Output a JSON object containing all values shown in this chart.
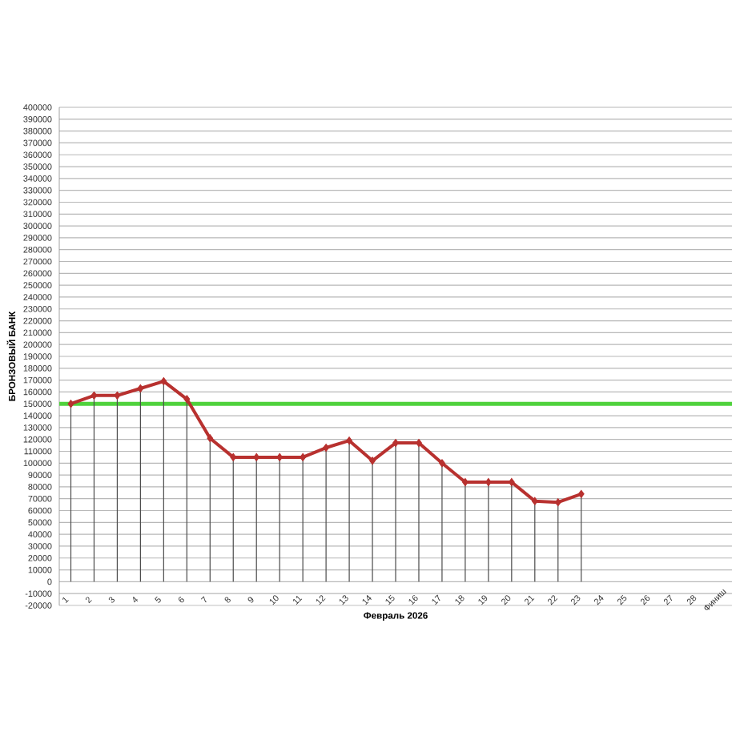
{
  "chart_data": {
    "type": "line",
    "xlabel": "Февраль 2026",
    "ylabel": "БРОНЗОВЫЙ БАНК",
    "categories": [
      "1",
      "2",
      "3",
      "4",
      "5",
      "6",
      "7",
      "8",
      "9",
      "10",
      "11",
      "12",
      "13",
      "14",
      "15",
      "16",
      "17",
      "18",
      "19",
      "20",
      "21",
      "22",
      "23",
      "24",
      "25",
      "26",
      "27",
      "28",
      "Финиш"
    ],
    "series": [
      {
        "color": "#b8312f",
        "marker": "none",
        "values": [
          150000,
          157000,
          157000,
          163000,
          169000,
          154000,
          121000,
          105000,
          105000,
          105000,
          105000,
          113000,
          119000,
          102000,
          117000,
          117000,
          100000,
          84000,
          84000,
          84000,
          68000,
          67000,
          74000,
          null,
          null,
          null,
          null,
          null,
          null
        ]
      },
      {
        "type": "lollipop",
        "color": "#b8312f",
        "values": [
          150000,
          157000,
          157000,
          163000,
          169000,
          154000,
          121000,
          105000,
          105000,
          105000,
          105000,
          113000,
          119000,
          102000,
          117000,
          117000,
          100000,
          84000,
          84000,
          84000,
          68000,
          67000,
          74000,
          null,
          null,
          null,
          null,
          null,
          null
        ]
      }
    ],
    "ylim": [
      -20000,
      400000
    ],
    "yticks": [
      -20000,
      -10000,
      0,
      10000,
      20000,
      30000,
      40000,
      50000,
      60000,
      70000,
      80000,
      90000,
      100000,
      110000,
      120000,
      130000,
      140000,
      150000,
      160000,
      170000,
      180000,
      190000,
      200000,
      210000,
      220000,
      230000,
      240000,
      250000,
      260000,
      270000,
      280000,
      290000,
      300000,
      310000,
      320000,
      330000,
      340000,
      350000,
      360000,
      370000,
      380000,
      390000,
      400000
    ],
    "ref_lines": [
      {
        "axis": "y",
        "value": 150000,
        "color": "#4fd23c"
      }
    ],
    "grid": "y",
    "legend": false,
    "marker": "diamond",
    "line_style": "solid"
  }
}
